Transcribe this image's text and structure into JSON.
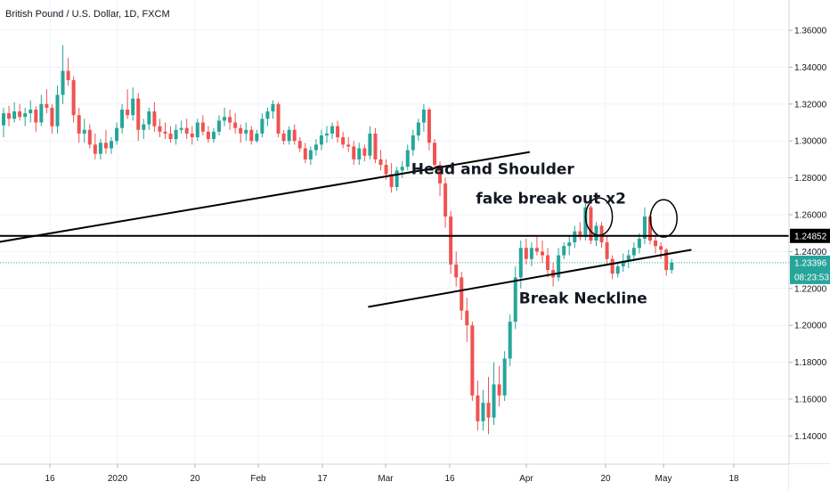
{
  "chart_data": {
    "type": "candlestick",
    "title": "British Pound / U.S. Dollar, 1D, FXCM",
    "x_ticks": [
      "16",
      "2020",
      "20",
      "Feb",
      "17",
      "Mar",
      "16",
      "Apr",
      "20",
      "May",
      "18"
    ],
    "y_ticks": [
      "1.36000",
      "1.34000",
      "1.32000",
      "1.30000",
      "1.28000",
      "1.26000",
      "1.24000",
      "1.22000",
      "1.20000",
      "1.18000",
      "1.16000",
      "1.14000"
    ],
    "ylim": [
      1.1195,
      1.3765
    ],
    "grid": true,
    "up_color": "#26a69a",
    "down_color": "#ef5350",
    "resistance_level": {
      "value": 1.24852,
      "label": "1.24852",
      "color": "#000000"
    },
    "current_price": {
      "value": 1.23396,
      "label": "1.23396",
      "countdown": "08:23:53",
      "color": "#26a69a"
    },
    "candles": [
      [
        1.3085,
        1.318,
        1.302,
        1.315
      ],
      [
        1.315,
        1.319,
        1.308,
        1.312
      ],
      [
        1.312,
        1.321,
        1.31,
        1.316
      ],
      [
        1.316,
        1.32,
        1.311,
        1.313
      ],
      [
        1.313,
        1.318,
        1.308,
        1.315
      ],
      [
        1.315,
        1.322,
        1.31,
        1.317
      ],
      [
        1.317,
        1.319,
        1.305,
        1.31
      ],
      [
        1.31,
        1.325,
        1.308,
        1.32
      ],
      [
        1.32,
        1.328,
        1.315,
        1.318
      ],
      [
        1.318,
        1.32,
        1.304,
        1.308
      ],
      [
        1.308,
        1.33,
        1.304,
        1.325
      ],
      [
        1.325,
        1.352,
        1.32,
        1.338
      ],
      [
        1.338,
        1.345,
        1.33,
        1.333
      ],
      [
        1.333,
        1.335,
        1.31,
        1.314
      ],
      [
        1.314,
        1.318,
        1.299,
        1.304
      ],
      [
        1.304,
        1.312,
        1.299,
        1.306
      ],
      [
        1.306,
        1.309,
        1.296,
        1.298
      ],
      [
        1.298,
        1.304,
        1.29,
        1.293
      ],
      [
        1.293,
        1.301,
        1.29,
        1.299
      ],
      [
        1.299,
        1.306,
        1.293,
        1.296
      ],
      [
        1.296,
        1.302,
        1.293,
        1.3
      ],
      [
        1.3,
        1.31,
        1.298,
        1.307
      ],
      [
        1.307,
        1.32,
        1.304,
        1.317
      ],
      [
        1.317,
        1.328,
        1.312,
        1.314
      ],
      [
        1.314,
        1.329,
        1.311,
        1.323
      ],
      [
        1.323,
        1.326,
        1.3,
        1.306
      ],
      [
        1.306,
        1.312,
        1.301,
        1.309
      ],
      [
        1.309,
        1.318,
        1.306,
        1.316
      ],
      [
        1.316,
        1.321,
        1.305,
        1.308
      ],
      [
        1.308,
        1.312,
        1.302,
        1.305
      ],
      [
        1.305,
        1.31,
        1.301,
        1.304
      ],
      [
        1.304,
        1.308,
        1.299,
        1.301
      ],
      [
        1.301,
        1.309,
        1.298,
        1.306
      ],
      [
        1.306,
        1.311,
        1.304,
        1.307
      ],
      [
        1.307,
        1.312,
        1.301,
        1.304
      ],
      [
        1.304,
        1.308,
        1.298,
        1.302
      ],
      [
        1.302,
        1.312,
        1.3,
        1.31
      ],
      [
        1.31,
        1.314,
        1.303,
        1.305
      ],
      [
        1.305,
        1.308,
        1.299,
        1.301
      ],
      [
        1.301,
        1.307,
        1.299,
        1.305
      ],
      [
        1.305,
        1.314,
        1.303,
        1.311
      ],
      [
        1.311,
        1.318,
        1.308,
        1.313
      ],
      [
        1.313,
        1.317,
        1.306,
        1.31
      ],
      [
        1.31,
        1.315,
        1.304,
        1.307
      ],
      [
        1.307,
        1.309,
        1.299,
        1.304
      ],
      [
        1.304,
        1.31,
        1.3,
        1.306
      ],
      [
        1.306,
        1.308,
        1.298,
        1.3
      ],
      [
        1.3,
        1.306,
        1.299,
        1.304
      ],
      [
        1.304,
        1.315,
        1.302,
        1.312
      ],
      [
        1.312,
        1.318,
        1.308,
        1.316
      ],
      [
        1.316,
        1.322,
        1.312,
        1.32
      ],
      [
        1.32,
        1.321,
        1.302,
        1.304
      ],
      [
        1.304,
        1.306,
        1.298,
        1.3
      ],
      [
        1.3,
        1.308,
        1.298,
        1.306
      ],
      [
        1.306,
        1.309,
        1.298,
        1.3
      ],
      [
        1.3,
        1.302,
        1.294,
        1.296
      ],
      [
        1.296,
        1.299,
        1.288,
        1.29
      ],
      [
        1.29,
        1.297,
        1.287,
        1.295
      ],
      [
        1.295,
        1.301,
        1.292,
        1.298
      ],
      [
        1.298,
        1.306,
        1.295,
        1.303
      ],
      [
        1.303,
        1.308,
        1.299,
        1.304
      ],
      [
        1.304,
        1.31,
        1.301,
        1.308
      ],
      [
        1.308,
        1.311,
        1.299,
        1.302
      ],
      [
        1.302,
        1.305,
        1.296,
        1.298
      ],
      [
        1.298,
        1.302,
        1.294,
        1.297
      ],
      [
        1.297,
        1.3,
        1.287,
        1.29
      ],
      [
        1.29,
        1.299,
        1.287,
        1.296
      ],
      [
        1.296,
        1.298,
        1.289,
        1.292
      ],
      [
        1.292,
        1.308,
        1.29,
        1.304
      ],
      [
        1.304,
        1.307,
        1.288,
        1.29
      ],
      [
        1.29,
        1.295,
        1.284,
        1.287
      ],
      [
        1.287,
        1.29,
        1.279,
        1.282
      ],
      [
        1.282,
        1.288,
        1.272,
        1.275
      ],
      [
        1.275,
        1.286,
        1.273,
        1.284
      ],
      [
        1.284,
        1.289,
        1.28,
        1.286
      ],
      [
        1.286,
        1.298,
        1.284,
        1.295
      ],
      [
        1.295,
        1.306,
        1.292,
        1.303
      ],
      [
        1.303,
        1.312,
        1.3,
        1.31
      ],
      [
        1.31,
        1.32,
        1.305,
        1.317
      ],
      [
        1.317,
        1.318,
        1.295,
        1.299
      ],
      [
        1.299,
        1.301,
        1.285,
        1.287
      ],
      [
        1.287,
        1.289,
        1.27,
        1.277
      ],
      [
        1.277,
        1.28,
        1.253,
        1.259
      ],
      [
        1.259,
        1.262,
        1.228,
        1.233
      ],
      [
        1.233,
        1.24,
        1.221,
        1.226
      ],
      [
        1.226,
        1.229,
        1.203,
        1.208
      ],
      [
        1.208,
        1.215,
        1.191,
        1.2
      ],
      [
        1.2,
        1.202,
        1.159,
        1.162
      ],
      [
        1.162,
        1.17,
        1.143,
        1.148
      ],
      [
        1.148,
        1.165,
        1.143,
        1.158
      ],
      [
        1.158,
        1.172,
        1.141,
        1.15
      ],
      [
        1.15,
        1.18,
        1.146,
        1.168
      ],
      [
        1.168,
        1.178,
        1.156,
        1.162
      ],
      [
        1.162,
        1.186,
        1.159,
        1.182
      ],
      [
        1.182,
        1.206,
        1.178,
        1.202
      ],
      [
        1.202,
        1.232,
        1.198,
        1.226
      ],
      [
        1.226,
        1.246,
        1.22,
        1.242
      ],
      [
        1.242,
        1.247,
        1.233,
        1.236
      ],
      [
        1.236,
        1.245,
        1.232,
        1.242
      ],
      [
        1.242,
        1.248,
        1.238,
        1.24
      ],
      [
        1.24,
        1.246,
        1.234,
        1.238
      ],
      [
        1.238,
        1.242,
        1.226,
        1.23
      ],
      [
        1.23,
        1.234,
        1.221,
        1.226
      ],
      [
        1.226,
        1.242,
        1.224,
        1.238
      ],
      [
        1.238,
        1.245,
        1.236,
        1.243
      ],
      [
        1.243,
        1.249,
        1.238,
        1.245
      ],
      [
        1.245,
        1.254,
        1.242,
        1.251
      ],
      [
        1.251,
        1.256,
        1.246,
        1.248
      ],
      [
        1.248,
        1.266,
        1.246,
        1.264
      ],
      [
        1.264,
        1.265,
        1.244,
        1.246
      ],
      [
        1.246,
        1.256,
        1.243,
        1.254
      ],
      [
        1.254,
        1.256,
        1.242,
        1.245
      ],
      [
        1.245,
        1.249,
        1.233,
        1.236
      ],
      [
        1.236,
        1.238,
        1.225,
        1.228
      ],
      [
        1.228,
        1.234,
        1.226,
        1.232
      ],
      [
        1.232,
        1.239,
        1.229,
        1.235
      ],
      [
        1.235,
        1.241,
        1.231,
        1.238
      ],
      [
        1.238,
        1.245,
        1.235,
        1.242
      ],
      [
        1.242,
        1.25,
        1.239,
        1.247
      ],
      [
        1.247,
        1.264,
        1.244,
        1.259
      ],
      [
        1.259,
        1.26,
        1.244,
        1.246
      ],
      [
        1.246,
        1.249,
        1.239,
        1.243
      ],
      [
        1.243,
        1.245,
        1.236,
        1.241
      ],
      [
        1.241,
        1.242,
        1.227,
        1.23
      ],
      [
        1.23,
        1.236,
        1.228,
        1.234
      ]
    ],
    "trendlines": [
      {
        "from": {
          "candle": -9,
          "price": 1.241
        },
        "to": {
          "candle": 98,
          "price": 1.294
        }
      },
      {
        "from": {
          "candle": 68,
          "price": 1.21
        },
        "to": {
          "candle": 128,
          "price": 1.241
        }
      }
    ],
    "annotations": [
      {
        "text": "Head and Shoulder",
        "candle": 76,
        "price": 1.282
      },
      {
        "text": "fake break out x2",
        "candle": 88,
        "price": 1.266
      },
      {
        "text": "Break Neckline",
        "candle": 96,
        "price": 1.212
      }
    ],
    "circles": [
      {
        "candle": 112,
        "price": 1.259
      },
      {
        "candle": 124,
        "price": 1.258
      }
    ]
  }
}
